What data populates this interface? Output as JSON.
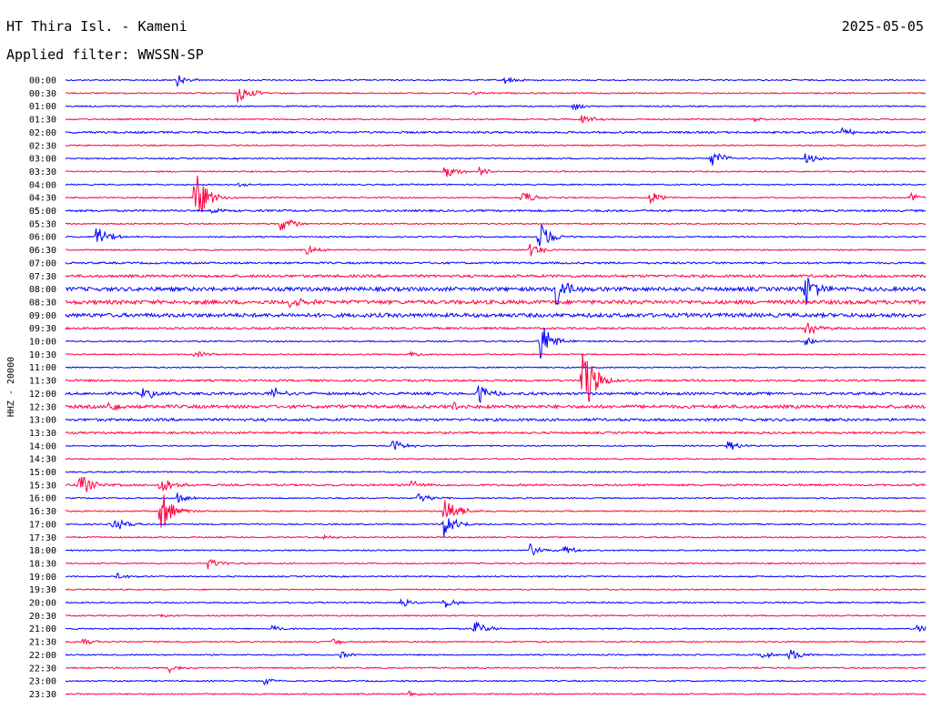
{
  "header": {
    "station": "HT Thira Isl. - Kameni",
    "date": "2025-05-05",
    "filter": "Applied filter: WWSSN-SP"
  },
  "chart_data": {
    "type": "line",
    "title": "HT Thira Isl. - Kameni",
    "ylabel": "HHZ - 20000",
    "row_labels": [
      "00:00",
      "00:30",
      "01:00",
      "01:30",
      "02:00",
      "02:30",
      "03:00",
      "03:30",
      "04:00",
      "04:30",
      "05:00",
      "05:30",
      "06:00",
      "06:30",
      "07:00",
      "07:30",
      "08:00",
      "08:30",
      "09:00",
      "09:30",
      "10:00",
      "10:30",
      "11:00",
      "11:30",
      "12:00",
      "12:30",
      "13:00",
      "13:30",
      "14:00",
      "14:30",
      "15:00",
      "15:30",
      "16:00",
      "16:30",
      "17:00",
      "17:30",
      "18:00",
      "18:30",
      "19:00",
      "19:30",
      "20:00",
      "20:30",
      "21:00",
      "21:30",
      "22:00",
      "22:30",
      "23:00",
      "23:30"
    ],
    "series_colors": [
      "#0000ff",
      "#ff0040"
    ],
    "grid": false,
    "noise_level": [
      1,
      1,
      1,
      1,
      1.5,
      1,
      1,
      1,
      1,
      1,
      1.5,
      1,
      1,
      1,
      1.5,
      2,
      3,
      3,
      3,
      1.5,
      1,
      1,
      1,
      1.5,
      2,
      2.5,
      2,
      1.5,
      1,
      1,
      1,
      1.5,
      1,
      1,
      1,
      1,
      1,
      1,
      1,
      1,
      1,
      1,
      1,
      1,
      1,
      1,
      1,
      1
    ],
    "events": [
      {
        "row": 0,
        "t": 0.13,
        "amp": 6
      },
      {
        "row": 0,
        "t": 0.51,
        "amp": 5
      },
      {
        "row": 1,
        "t": 0.2,
        "amp": 14
      },
      {
        "row": 1,
        "t": 0.47,
        "amp": 3
      },
      {
        "row": 2,
        "t": 0.59,
        "amp": 4
      },
      {
        "row": 3,
        "t": 0.6,
        "amp": 6
      },
      {
        "row": 3,
        "t": 0.8,
        "amp": 3
      },
      {
        "row": 4,
        "t": 0.9,
        "amp": 6
      },
      {
        "row": 6,
        "t": 0.75,
        "amp": 12
      },
      {
        "row": 6,
        "t": 0.86,
        "amp": 6
      },
      {
        "row": 7,
        "t": 0.44,
        "amp": 8
      },
      {
        "row": 7,
        "t": 0.48,
        "amp": 6
      },
      {
        "row": 8,
        "t": 0.2,
        "amp": 3
      },
      {
        "row": 9,
        "t": 0.15,
        "amp": 34
      },
      {
        "row": 9,
        "t": 0.53,
        "amp": 10
      },
      {
        "row": 9,
        "t": 0.68,
        "amp": 8
      },
      {
        "row": 9,
        "t": 0.98,
        "amp": 6
      },
      {
        "row": 10,
        "t": 0.17,
        "amp": 4
      },
      {
        "row": 11,
        "t": 0.25,
        "amp": 11
      },
      {
        "row": 12,
        "t": 0.035,
        "amp": 16
      },
      {
        "row": 12,
        "t": 0.55,
        "amp": 20
      },
      {
        "row": 13,
        "t": 0.28,
        "amp": 6
      },
      {
        "row": 13,
        "t": 0.54,
        "amp": 8
      },
      {
        "row": 16,
        "t": 0.57,
        "amp": 24
      },
      {
        "row": 16,
        "t": 0.86,
        "amp": 20
      },
      {
        "row": 17,
        "t": 0.26,
        "amp": 8
      },
      {
        "row": 19,
        "t": 0.86,
        "amp": 10
      },
      {
        "row": 20,
        "t": 0.55,
        "amp": 28
      },
      {
        "row": 20,
        "t": 0.86,
        "amp": 5
      },
      {
        "row": 21,
        "t": 0.15,
        "amp": 4
      },
      {
        "row": 21,
        "t": 0.4,
        "amp": 4
      },
      {
        "row": 23,
        "t": 0.6,
        "amp": 50
      },
      {
        "row": 24,
        "t": 0.09,
        "amp": 8
      },
      {
        "row": 24,
        "t": 0.24,
        "amp": 10
      },
      {
        "row": 24,
        "t": 0.48,
        "amp": 12
      },
      {
        "row": 25,
        "t": 0.05,
        "amp": 8
      },
      {
        "row": 25,
        "t": 0.45,
        "amp": 6
      },
      {
        "row": 28,
        "t": 0.38,
        "amp": 8
      },
      {
        "row": 28,
        "t": 0.77,
        "amp": 6
      },
      {
        "row": 31,
        "t": 0.015,
        "amp": 16
      },
      {
        "row": 31,
        "t": 0.11,
        "amp": 12
      },
      {
        "row": 31,
        "t": 0.4,
        "amp": 6
      },
      {
        "row": 32,
        "t": 0.13,
        "amp": 6
      },
      {
        "row": 32,
        "t": 0.41,
        "amp": 8
      },
      {
        "row": 33,
        "t": 0.11,
        "amp": 26
      },
      {
        "row": 33,
        "t": 0.44,
        "amp": 22
      },
      {
        "row": 34,
        "t": 0.055,
        "amp": 10
      },
      {
        "row": 34,
        "t": 0.44,
        "amp": 16
      },
      {
        "row": 35,
        "t": 0.3,
        "amp": 3
      },
      {
        "row": 36,
        "t": 0.54,
        "amp": 8
      },
      {
        "row": 36,
        "t": 0.58,
        "amp": 6
      },
      {
        "row": 37,
        "t": 0.165,
        "amp": 7
      },
      {
        "row": 38,
        "t": 0.06,
        "amp": 4
      },
      {
        "row": 40,
        "t": 0.39,
        "amp": 6
      },
      {
        "row": 40,
        "t": 0.44,
        "amp": 7
      },
      {
        "row": 41,
        "t": 0.11,
        "amp": 3
      },
      {
        "row": 42,
        "t": 0.24,
        "amp": 4
      },
      {
        "row": 42,
        "t": 0.475,
        "amp": 10
      },
      {
        "row": 42,
        "t": 0.99,
        "amp": 5
      },
      {
        "row": 43,
        "t": 0.02,
        "amp": 4
      },
      {
        "row": 43,
        "t": 0.31,
        "amp": 4
      },
      {
        "row": 44,
        "t": 0.32,
        "amp": 4
      },
      {
        "row": 44,
        "t": 0.81,
        "amp": 6
      },
      {
        "row": 44,
        "t": 0.84,
        "amp": 8
      },
      {
        "row": 45,
        "t": 0.12,
        "amp": 6
      },
      {
        "row": 46,
        "t": 0.23,
        "amp": 4
      },
      {
        "row": 47,
        "t": 0.4,
        "amp": 5
      }
    ]
  }
}
